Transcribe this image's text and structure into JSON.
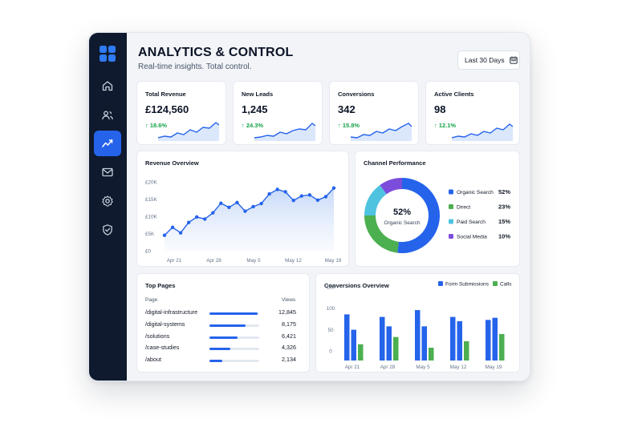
{
  "header": {
    "title": "ANALYTICS & CONTROL",
    "subtitle": "Real-time insights. Total control.",
    "date_range": "Last 30 Days"
  },
  "sidebar": {
    "items": [
      {
        "icon": "home-icon"
      },
      {
        "icon": "users-icon"
      },
      {
        "icon": "analytics-icon",
        "active": true
      },
      {
        "icon": "mail-icon"
      },
      {
        "icon": "settings-icon"
      },
      {
        "icon": "shield-icon"
      }
    ]
  },
  "kpis": [
    {
      "label": "Total Revenue",
      "value": "£124,560",
      "delta": "↑ 18.6%"
    },
    {
      "label": "New Leads",
      "value": "1,245",
      "delta": "↑ 24.3%"
    },
    {
      "label": "Conversions",
      "value": "342",
      "delta": "↑ 15.8%"
    },
    {
      "label": "Active Clients",
      "value": "98",
      "delta": "↑ 12.1%"
    }
  ],
  "colors": {
    "accent": "#2563eb",
    "green": "#16a34a",
    "sidebar": "#0f1a2e",
    "organic": "#2563eb",
    "direct": "#4caf50",
    "paid": "#4ec3e0",
    "social": "#7c4ddb"
  },
  "chart_data": [
    {
      "type": "area",
      "title": "Revenue Overview",
      "x_ticks": [
        "Apr 21",
        "Apr 28",
        "May 5",
        "May 12",
        "May 19"
      ],
      "y_ticks": [
        "£0",
        "£5K",
        "£10K",
        "£15K",
        "£20K"
      ],
      "ylim": [
        0,
        20000
      ],
      "values": [
        4500,
        6800,
        5200,
        8200,
        9800,
        9200,
        11000,
        13800,
        12600,
        14000,
        11500,
        12800,
        13700,
        16500,
        17800,
        17100,
        14600,
        15900,
        16200,
        14700,
        15700,
        18200
      ]
    },
    {
      "type": "pie",
      "title": "Channel Performance",
      "center_value": "52%",
      "center_label": "Organic Search",
      "slices": [
        {
          "name": "Organic Search",
          "value": 52,
          "pct": "52%"
        },
        {
          "name": "Direct",
          "value": 23,
          "pct": "23%"
        },
        {
          "name": "Paid Search",
          "value": 15,
          "pct": "15%"
        },
        {
          "name": "Social Media",
          "value": 10,
          "pct": "10%"
        }
      ]
    },
    {
      "type": "bar",
      "title": "Conversions Overview",
      "categories": [
        "Apr 21",
        "Apr 28",
        "May 5",
        "May 12",
        "May 19"
      ],
      "y_ticks": [
        "0",
        "50",
        "100",
        "150"
      ],
      "ylim": [
        0,
        150
      ],
      "series": [
        {
          "name": "Form Submissions",
          "values": [
            108,
            102,
            118,
            102,
            95
          ],
          "values2": [
            72,
            80,
            80,
            92,
            100
          ]
        },
        {
          "name": "Calls",
          "values": [
            38,
            55,
            30,
            45,
            62
          ]
        }
      ]
    },
    {
      "type": "table",
      "title": "Top Pages",
      "columns": [
        "Page",
        "Views"
      ],
      "rows": [
        {
          "page": "/digital-infrastructure",
          "views": "12,845",
          "fill": 0.96
        },
        {
          "page": "/digital-systems",
          "views": "8,175",
          "fill": 0.72
        },
        {
          "page": "/solutions",
          "views": "6,421",
          "fill": 0.56
        },
        {
          "page": "/case-studies",
          "views": "4,326",
          "fill": 0.42
        },
        {
          "page": "/about",
          "views": "2,134",
          "fill": 0.26
        }
      ]
    }
  ]
}
